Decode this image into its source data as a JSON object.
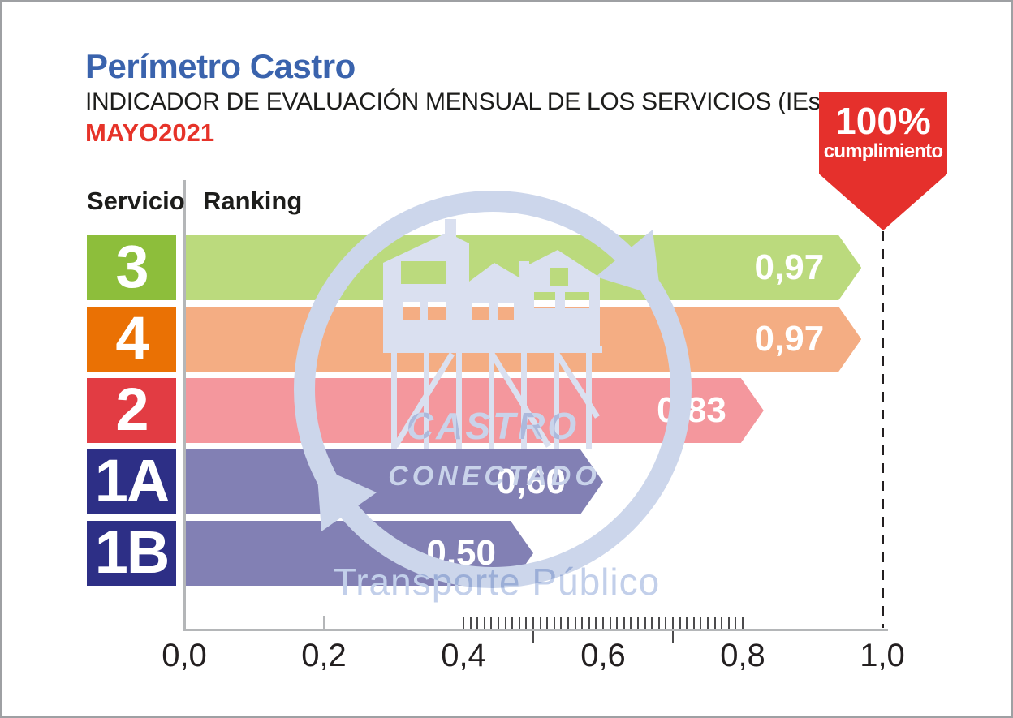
{
  "header": {
    "title": "Perímetro Castro",
    "subtitle": "INDICADOR DE EVALUACIÓN MENSUAL DE LOS SERVICIOS (IEsm)",
    "period": "MAYO2021",
    "title_color": "#3a63ad",
    "period_color": "#e63329"
  },
  "badge": {
    "value": "100%",
    "label": "cumplimiento",
    "color": "#e5302c"
  },
  "columns": {
    "service": "Servicio",
    "ranking": "Ranking"
  },
  "watermark": {
    "line1": "CASTRO",
    "line2": "CONECTADO",
    "line3": "Transporte Público"
  },
  "chart_data": {
    "type": "bar",
    "orientation": "horizontal",
    "title": "Indicador de Evaluación Mensual de los Servicios (IEsm) - Mayo 2021",
    "categories": [
      "3",
      "4",
      "2",
      "1A",
      "1B"
    ],
    "values": [
      0.97,
      0.97,
      0.83,
      0.6,
      0.5
    ],
    "value_labels": [
      "0,97",
      "0,97",
      "0,83",
      "0,60",
      "0,50"
    ],
    "label_colors": [
      "#8dbe3b",
      "#ea7104",
      "#e23c43",
      "#2d2f86",
      "#2d2f86"
    ],
    "bar_colors": [
      "#bbda7d",
      "#f4ad83",
      "#f4979d",
      "#8280b4",
      "#8280b4"
    ],
    "xlim": [
      0,
      1
    ],
    "x_tick_values": [
      0,
      0.2,
      0.4,
      0.6,
      0.8,
      1.0
    ],
    "x_tick_labels": [
      "0,0",
      "0,2",
      "0,4",
      "0,6",
      "0,8",
      "1,0"
    ],
    "minor_ticks": {
      "from": 0.4,
      "to": 0.8,
      "step": 0.01
    },
    "below_axis_ticks": [
      0.5,
      0.7
    ],
    "light_ticks": [
      0.2
    ],
    "reference_line_x": 1.0,
    "grid": false,
    "legend": false
  }
}
